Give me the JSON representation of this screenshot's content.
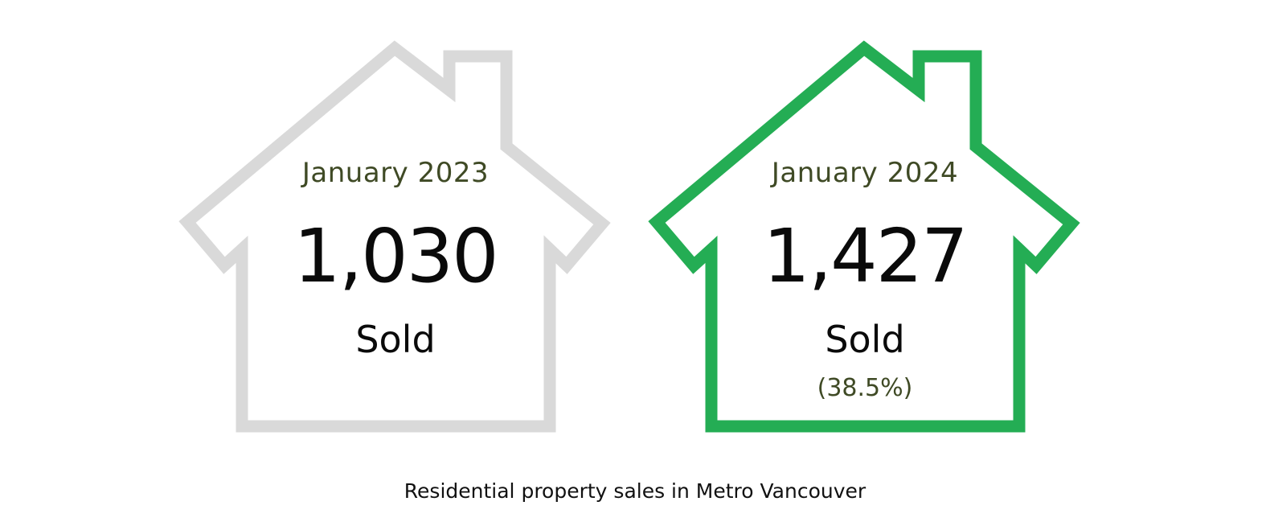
{
  "cards": [
    {
      "period": "January 2023",
      "count": "1,030",
      "status": "Sold",
      "change": "",
      "outline_color": "#d9d9d9"
    },
    {
      "period": "January 2024",
      "count": "1,427",
      "status": "Sold",
      "change": "(38.5%)",
      "outline_color": "#24ad54"
    }
  ],
  "caption": "Residential property sales in Metro Vancouver"
}
